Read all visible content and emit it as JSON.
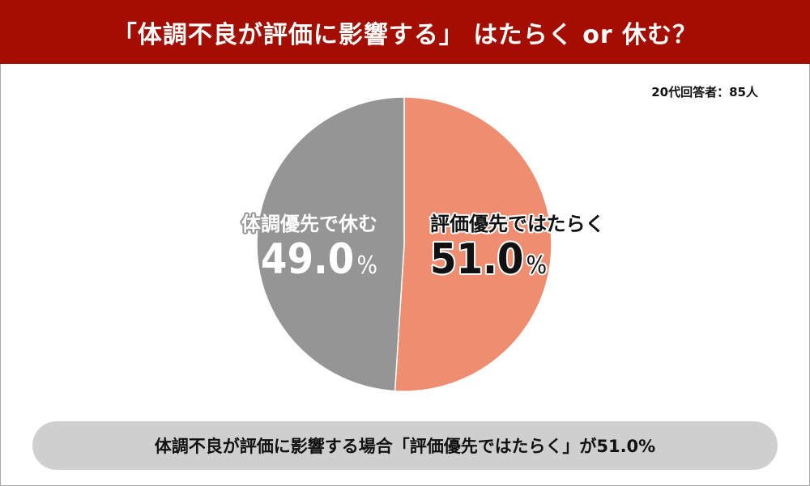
{
  "header": {
    "title": "「体調不良が評価に影響する」 はたらく or 休む？"
  },
  "respondents": "20代回答者：85人",
  "chart_data": {
    "type": "pie",
    "title": "「体調不良が評価に影響する」 はたらく or 休む？",
    "slices": [
      {
        "label": "評価優先ではたらく",
        "value": 51.0,
        "value_label": "51.0",
        "unit": "%",
        "color": "#ef8d70"
      },
      {
        "label": "体調優先で休む",
        "value": 49.0,
        "value_label": "49.0",
        "unit": "%",
        "color": "#959595"
      }
    ],
    "start": "12 o'clock",
    "direction": "clockwise",
    "labels_placement": "inside"
  },
  "summary": "体調不良が評価に影響する場合「評価優先ではたらく」が51.0%"
}
